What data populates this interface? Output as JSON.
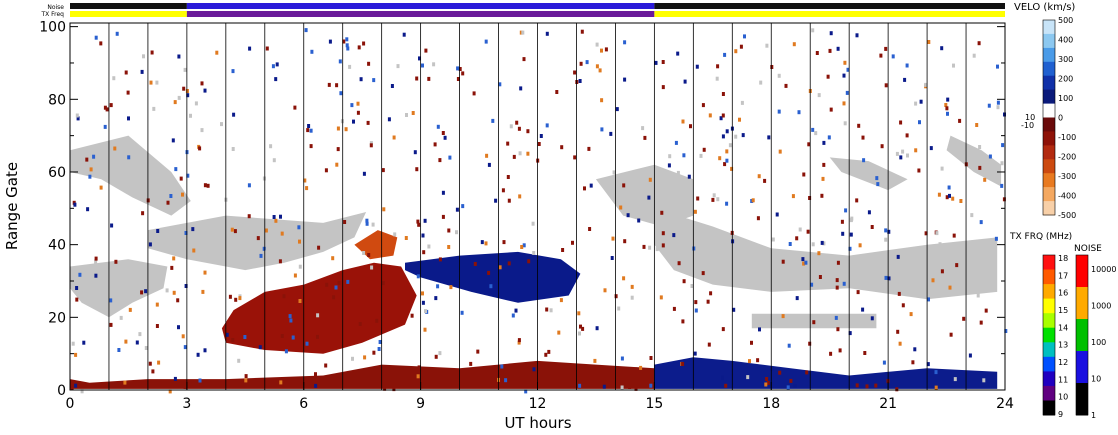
{
  "chart_data": {
    "type": "heatmap",
    "title": "",
    "xlabel": "UT hours",
    "ylabel": "Range Gate",
    "xlim": [
      0,
      24
    ],
    "ylim": [
      0,
      101
    ],
    "x_ticks": [
      0,
      3,
      6,
      9,
      12,
      15,
      18,
      21,
      24
    ],
    "x_tick_labels": [
      "0",
      "3",
      "6",
      "9",
      "12",
      "15",
      "18",
      "21",
      "24"
    ],
    "y_ticks": [
      0,
      20,
      40,
      60,
      80,
      100
    ],
    "y_tick_labels": [
      "0",
      "20",
      "40",
      "60",
      "80",
      "100"
    ],
    "y_minor_ticks": [
      10,
      30,
      50,
      70,
      90
    ],
    "hour_gridlines": [
      1,
      2,
      3,
      4,
      5,
      6,
      7,
      8,
      9,
      10,
      11,
      12,
      13,
      14,
      15,
      16,
      17,
      18,
      19,
      20,
      21,
      22,
      23
    ],
    "grid": "vertical hourly lines",
    "status_bars": {
      "noise_label": "Noise",
      "txfreq_label": "TX Freq",
      "noise_segments": [
        {
          "start": 0,
          "end": 3,
          "color": "#111111"
        },
        {
          "start": 3,
          "end": 15,
          "color": "#2a1ad8"
        },
        {
          "start": 15,
          "end": 24,
          "color": "#111111"
        }
      ],
      "txfreq_segments": [
        {
          "start": 0,
          "end": 3,
          "color": "#ffff00"
        },
        {
          "start": 3,
          "end": 15,
          "color": "#6a1a9a"
        },
        {
          "start": 15,
          "end": 24,
          "color": "#ffff00"
        }
      ]
    },
    "regions": [
      {
        "name": "positive velocity echoes",
        "color": "#0a1a8a",
        "polygon": [
          [
            8.6,
            35
          ],
          [
            10.0,
            37
          ],
          [
            11.5,
            38
          ],
          [
            12.6,
            36
          ],
          [
            13.1,
            32
          ],
          [
            12.8,
            26
          ],
          [
            11.5,
            24
          ],
          [
            10.3,
            27
          ],
          [
            9.0,
            31
          ],
          [
            8.6,
            33
          ]
        ]
      },
      {
        "name": "negative velocity echoes (-150 km/s)",
        "color": "#9a1208",
        "polygon": [
          [
            4.0,
            13
          ],
          [
            5.0,
            11
          ],
          [
            6.5,
            10
          ],
          [
            7.5,
            13
          ],
          [
            8.6,
            18
          ],
          [
            8.9,
            26
          ],
          [
            8.5,
            34
          ],
          [
            7.8,
            35
          ],
          [
            7.0,
            33
          ],
          [
            6.0,
            29
          ],
          [
            5.0,
            27
          ],
          [
            4.2,
            22
          ],
          [
            3.9,
            17
          ]
        ]
      },
      {
        "name": "negative velocity echoes (-250 km/s)",
        "color": "#d04a10",
        "polygon": [
          [
            7.3,
            40
          ],
          [
            7.9,
            44
          ],
          [
            8.4,
            42
          ],
          [
            8.3,
            37
          ],
          [
            7.7,
            36
          ]
        ]
      },
      {
        "name": "negative velocity echoes near ground",
        "color": "#8a1208",
        "polygon": [
          [
            0.0,
            0.3
          ],
          [
            15.0,
            0.3
          ],
          [
            15.0,
            6
          ],
          [
            13.5,
            7
          ],
          [
            12.0,
            8
          ],
          [
            10.0,
            6
          ],
          [
            8.0,
            7
          ],
          [
            6.5,
            4
          ],
          [
            4.0,
            3
          ],
          [
            2.0,
            3
          ],
          [
            0.5,
            2
          ],
          [
            0.0,
            3
          ]
        ]
      },
      {
        "name": "positive velocity echoes near ground",
        "color": "#0c1c8c",
        "polygon": [
          [
            15.0,
            0.3
          ],
          [
            23.8,
            0.3
          ],
          [
            23.8,
            5
          ],
          [
            22.0,
            6
          ],
          [
            20.0,
            4
          ],
          [
            18.5,
            6
          ],
          [
            17.0,
            8
          ],
          [
            16.0,
            9
          ],
          [
            15.0,
            7
          ]
        ]
      },
      {
        "name": "ground scatter band",
        "color": "#c4c4c4",
        "polygon": [
          [
            2.0,
            44
          ],
          [
            4.0,
            48
          ],
          [
            6.5,
            46
          ],
          [
            7.6,
            49
          ],
          [
            7.3,
            42
          ],
          [
            6.5,
            38
          ],
          [
            5.5,
            35
          ],
          [
            4.5,
            33
          ],
          [
            3.0,
            36
          ],
          [
            2.0,
            39
          ]
        ]
      },
      {
        "name": "ground scatter band",
        "color": "#c4c4c4",
        "polygon": [
          [
            0.0,
            66
          ],
          [
            1.5,
            70
          ],
          [
            2.6,
            60
          ],
          [
            3.1,
            52
          ],
          [
            2.6,
            48
          ],
          [
            1.6,
            53
          ],
          [
            0.8,
            58
          ],
          [
            0.0,
            60
          ]
        ]
      },
      {
        "name": "ground scatter band",
        "color": "#c4c4c4",
        "polygon": [
          [
            0.0,
            34
          ],
          [
            1.5,
            36
          ],
          [
            2.5,
            34
          ],
          [
            2.4,
            28
          ],
          [
            1.6,
            24
          ],
          [
            1.0,
            20
          ],
          [
            0.3,
            24
          ],
          [
            0.0,
            28
          ]
        ]
      },
      {
        "name": "ground scatter band",
        "color": "#c4c4c4",
        "polygon": [
          [
            15.0,
            50
          ],
          [
            16.5,
            45
          ],
          [
            18.0,
            39
          ],
          [
            20.0,
            37
          ],
          [
            22.0,
            40
          ],
          [
            23.8,
            42
          ],
          [
            23.8,
            27
          ],
          [
            22.0,
            25
          ],
          [
            20.0,
            28
          ],
          [
            18.0,
            27
          ],
          [
            16.5,
            29
          ],
          [
            15.5,
            33
          ],
          [
            15.0,
            40
          ]
        ]
      },
      {
        "name": "ground scatter band",
        "color": "#c4c4c4",
        "polygon": [
          [
            17.5,
            21
          ],
          [
            20.7,
            21
          ],
          [
            20.7,
            17
          ],
          [
            17.5,
            17
          ]
        ]
      },
      {
        "name": "ground scatter band",
        "color": "#c4c4c4",
        "polygon": [
          [
            13.5,
            58
          ],
          [
            15.0,
            62
          ],
          [
            16.0,
            58
          ],
          [
            16.0,
            48
          ],
          [
            15.2,
            45
          ],
          [
            14.2,
            48
          ]
        ]
      },
      {
        "name": "ground scatter band",
        "color": "#c4c4c4",
        "polygon": [
          [
            19.5,
            64
          ],
          [
            20.5,
            63
          ],
          [
            21.5,
            58
          ],
          [
            21.0,
            55
          ],
          [
            19.8,
            60
          ]
        ]
      },
      {
        "name": "ground scatter band",
        "color": "#c4c4c4",
        "polygon": [
          [
            22.6,
            70
          ],
          [
            23.4,
            66
          ],
          [
            23.9,
            62
          ],
          [
            23.9,
            56
          ],
          [
            23.2,
            60
          ],
          [
            22.5,
            66
          ]
        ]
      }
    ],
    "velocity_colorbar": {
      "label": "VELO (km/s)",
      "tick_labels": [
        "500",
        "400",
        "300",
        "200",
        "100",
        "0",
        "-100",
        "-200",
        "-300",
        "-400",
        "-500"
      ],
      "small_labels": [
        "10",
        "-10"
      ],
      "colors": [
        "#c8e4f8",
        "#8cc8f0",
        "#4a9be8",
        "#2060d0",
        "#1030a8",
        "#0a1a7a",
        "#ffffff",
        "#6a0a0a",
        "#8e1208",
        "#b22a10",
        "#cc4a10",
        "#e87a20",
        "#f4a860",
        "#f8d0a8"
      ]
    },
    "txfreq_colorbar": {
      "label": "TX FRQ (MHz)",
      "tick_labels": [
        "18",
        "17",
        "16",
        "15",
        "14",
        "13",
        "12",
        "11",
        "10",
        "9"
      ],
      "colors": [
        "#ff1010",
        "#ff5a00",
        "#ffaa00",
        "#ffff00",
        "#a8ff00",
        "#00e000",
        "#00c0c0",
        "#0050ff",
        "#2000c0",
        "#600080",
        "#000000"
      ]
    },
    "noise_colorbar": {
      "label": "NOISE",
      "tick_labels": [
        "10000",
        "1000",
        "100",
        "10",
        "1"
      ],
      "colors": [
        "#ff0000",
        "#ffaa00",
        "#00c000",
        "#1a10e0",
        "#000000"
      ]
    }
  }
}
